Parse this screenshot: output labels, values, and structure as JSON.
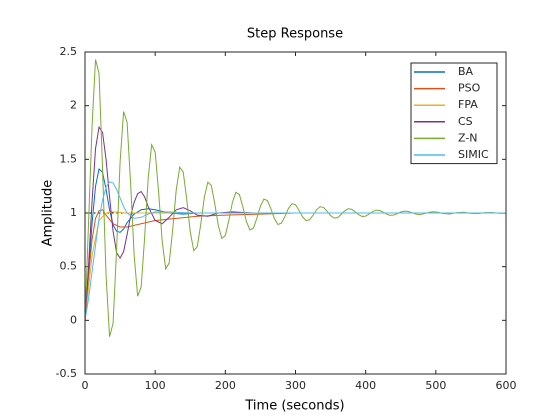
{
  "chart_data": {
    "type": "line",
    "title": "Step Response",
    "x_label": "Time (seconds)",
    "y_label": "Amplitude",
    "xlim": [
      0,
      600
    ],
    "xticks": [
      0,
      100,
      200,
      300,
      400,
      500,
      600
    ],
    "ylim": [
      -0.5,
      2.5
    ],
    "yticks": [
      -0.5,
      0,
      0.5,
      1,
      1.5,
      2,
      2.5
    ],
    "grid": false,
    "legend": "northeast",
    "steady_state": 1,
    "series": [
      {
        "name": "BA",
        "color": "#0072BD",
        "x": [
          0,
          5,
          10,
          15,
          20,
          25,
          30,
          35,
          40,
          45,
          50,
          55,
          60,
          70,
          80,
          90,
          100,
          120,
          140,
          160,
          200,
          600
        ],
        "values": [
          0,
          0.45,
          0.9,
          1.25,
          1.41,
          1.38,
          1.22,
          1.03,
          0.89,
          0.83,
          0.82,
          0.85,
          0.91,
          0.99,
          1.03,
          1.04,
          1.03,
          1.0,
          0.99,
          1.0,
          1.0,
          1.0
        ]
      },
      {
        "name": "PSO",
        "color": "#D95319",
        "x": [
          0,
          5,
          10,
          15,
          20,
          25,
          30,
          40,
          50,
          60,
          80,
          100,
          130,
          160,
          200,
          250,
          300,
          600
        ],
        "values": [
          0,
          0.4,
          0.75,
          0.95,
          1.02,
          1.03,
          0.98,
          0.9,
          0.87,
          0.87,
          0.9,
          0.93,
          0.95,
          0.97,
          0.98,
          0.99,
          1.0,
          1.0
        ]
      },
      {
        "name": "FPA",
        "color": "#EDB120",
        "x": [
          0,
          10,
          20,
          30,
          40,
          60,
          600
        ],
        "values": [
          0,
          0.6,
          0.93,
          1.0,
          1.01,
          1.0,
          1.0
        ]
      },
      {
        "name": "CS",
        "color": "#7E2F8E",
        "x": [
          0,
          5,
          10,
          15,
          20,
          25,
          30,
          35,
          40,
          45,
          50,
          55,
          60,
          65,
          70,
          75,
          80,
          85,
          90,
          100,
          110,
          120,
          130,
          140,
          150,
          160,
          175,
          190,
          210,
          240,
          600
        ],
        "values": [
          0,
          0.5,
          1.1,
          1.6,
          1.8,
          1.75,
          1.5,
          1.15,
          0.83,
          0.63,
          0.58,
          0.64,
          0.8,
          0.97,
          1.1,
          1.18,
          1.2,
          1.15,
          1.06,
          0.93,
          0.9,
          0.96,
          1.03,
          1.05,
          1.02,
          0.98,
          0.97,
          1.0,
          1.01,
          1.0,
          1.0
        ]
      },
      {
        "name": "Z-N",
        "color": "#77AC30",
        "x": [
          0,
          5,
          10,
          15,
          20,
          25,
          30,
          35,
          40,
          45,
          50,
          55,
          60,
          65,
          70,
          75,
          80,
          85,
          90,
          95,
          100,
          105,
          110,
          115,
          120,
          125,
          130,
          135,
          140,
          145,
          150,
          155,
          160,
          165,
          170,
          175,
          180,
          185,
          190,
          195,
          200,
          205,
          210,
          215,
          220,
          225,
          230,
          235,
          240,
          245,
          250,
          255,
          260,
          265,
          270,
          275,
          280,
          285,
          290,
          295,
          300,
          305,
          310,
          315,
          320,
          325,
          330,
          335,
          340,
          345,
          350,
          355,
          360,
          365,
          370,
          375,
          380,
          385,
          390,
          395,
          400,
          405,
          410,
          415,
          420,
          425,
          430,
          435,
          440,
          445,
          450,
          455,
          460,
          465,
          470,
          475,
          480,
          485,
          490,
          495,
          500,
          510,
          520,
          530,
          540,
          550,
          560,
          570,
          580,
          590,
          600
        ],
        "values": [
          0,
          0.9,
          1.8,
          2.43,
          2.3,
          1.414,
          0.422,
          -0.153,
          -0.028,
          0.661,
          1.474,
          1.945,
          1.843,
          1.278,
          0.611,
          0.225,
          0.309,
          0.772,
          1.319,
          1.636,
          1.567,
          1.187,
          0.738,
          0.479,
          0.535,
          0.847,
          1.214,
          1.427,
          1.381,
          1.126,
          0.824,
          0.649,
          0.687,
          0.897,
          1.144,
          1.287,
          1.257,
          1.085,
          0.882,
          0.764,
          0.79,
          0.931,
          1.097,
          1.193,
          1.172,
          1.057,
          0.921,
          0.842,
          0.859,
          0.953,
          1.065,
          1.129,
          1.116,
          1.038,
          0.946,
          0.893,
          0.906,
          0.969,
          1.044,
          1.087,
          1.078,
          1.026,
          0.964,
          0.929,
          0.937,
          0.979,
          1.03,
          1.058,
          1.052,
          1.017,
          0.976,
          0.952,
          0.957,
          0.986,
          1.02,
          1.039,
          1.035,
          1.011,
          0.984,
          0.968,
          0.971,
          0.991,
          1.013,
          1.027,
          1.023,
          1.008,
          0.989,
          0.978,
          0.981,
          0.994,
          1.009,
          1.017,
          1.015,
          1.005,
          0.993,
          0.986,
          0.988,
          0.996,
          1.006,
          1.011,
          1.011,
          0.995,
          0.991,
          1.004,
          1.007,
          0.997,
          0.994,
          1.003,
          1.005,
          0.998,
          0.996
        ]
      },
      {
        "name": "SIMIC",
        "color": "#4DBEEE",
        "x": [
          0,
          5,
          10,
          15,
          20,
          25,
          30,
          35,
          40,
          45,
          50,
          55,
          60,
          70,
          80,
          90,
          100,
          120,
          150,
          600
        ],
        "values": [
          0,
          0.2,
          0.45,
          0.7,
          0.95,
          1.12,
          1.24,
          1.29,
          1.28,
          1.22,
          1.14,
          1.06,
          1.0,
          0.95,
          0.96,
          0.99,
          1.01,
          1.01,
          1.0,
          1.0
        ]
      }
    ]
  }
}
